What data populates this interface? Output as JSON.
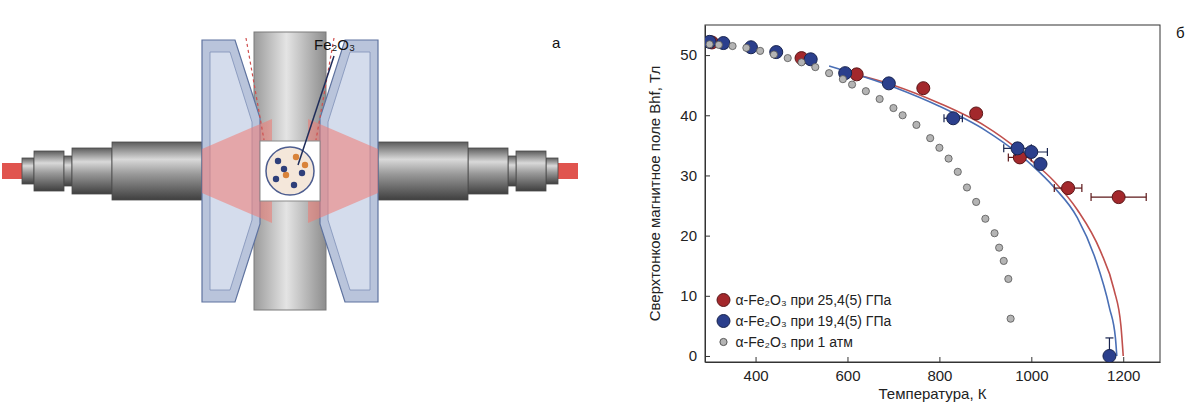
{
  "figure": {
    "panel_letters": [
      "а",
      "б"
    ],
    "sample_label": "Fe₂O₃"
  },
  "chart_data": {
    "type": "scatter",
    "x_label": "Температура, К",
    "y_label": "Сверхтонкое магнитное поле Bhf, Тл",
    "xlim": [
      290,
      1280
    ],
    "xticks": [
      400,
      600,
      800,
      1000,
      1200
    ],
    "ylim": [
      -1,
      55
    ],
    "yticks": [
      0,
      10,
      20,
      30,
      40,
      50
    ],
    "legend": "lower left",
    "series": [
      {
        "name": "α-Fe₂O₃ при 25,4(5) ГПа",
        "color": "#a3282c",
        "marker": "circle",
        "x": [
          305,
          500,
          620,
          765,
          880,
          975,
          1080,
          1190
        ],
        "values": [
          52.1,
          49.5,
          46.8,
          44.5,
          40.3,
          33.0,
          27.9,
          26.4
        ],
        "x_errors": [
          null,
          null,
          null,
          null,
          null,
          25,
          30,
          60
        ]
      },
      {
        "name": "α-Fe₂O₃ при 19,4(5) ГПа",
        "color": "#2b3f8c",
        "marker": "circle",
        "x": [
          300,
          330,
          390,
          445,
          520,
          595,
          690,
          830,
          970,
          1000,
          1020,
          1170
        ],
        "values": [
          52.2,
          52.0,
          51.3,
          50.5,
          49.3,
          47.0,
          45.3,
          39.5,
          34.5,
          33.9,
          31.9,
          0
        ],
        "x_errors": [
          null,
          null,
          null,
          null,
          null,
          null,
          null,
          20,
          30,
          35,
          null,
          null
        ],
        "y_errors": [
          null,
          null,
          null,
          null,
          null,
          null,
          null,
          null,
          null,
          null,
          null,
          3
        ]
      },
      {
        "name": "α-Fe₂O₃ при 1 атм",
        "color": "#b4b4b4",
        "marker": "small-circle",
        "x": [
          300,
          320,
          350,
          380,
          410,
          440,
          470,
          500,
          530,
          560,
          590,
          610,
          640,
          670,
          700,
          720,
          750,
          780,
          800,
          820,
          840,
          860,
          880,
          900,
          920,
          930,
          940,
          950,
          955
        ],
        "values": [
          51.8,
          51.7,
          51.5,
          51.2,
          50.7,
          50.1,
          49.5,
          48.8,
          48.0,
          47.0,
          46.0,
          45.1,
          44.0,
          42.7,
          41.2,
          40.0,
          38.4,
          36.2,
          34.6,
          32.8,
          30.6,
          28.0,
          25.6,
          22.8,
          20.4,
          18.0,
          15.8,
          12.8,
          6.2
        ]
      },
      {
        "type": "line",
        "color": "#c0504d",
        "x": [
          590,
          700,
          800,
          900,
          1000,
          1050,
          1100,
          1150,
          1180,
          1195,
          1200
        ],
        "values": [
          47.3,
          45.0,
          42.0,
          38.2,
          32.5,
          29.0,
          24.3,
          17.5,
          11.0,
          5.0,
          0
        ]
      },
      {
        "type": "line",
        "color": "#4a6fb5",
        "x": [
          560,
          700,
          800,
          900,
          1000,
          1050,
          1100,
          1140,
          1170,
          1183,
          1186
        ],
        "values": [
          48.2,
          44.7,
          41.5,
          37.5,
          31.8,
          28.0,
          23.0,
          16.0,
          8.0,
          3.0,
          0
        ]
      }
    ]
  }
}
